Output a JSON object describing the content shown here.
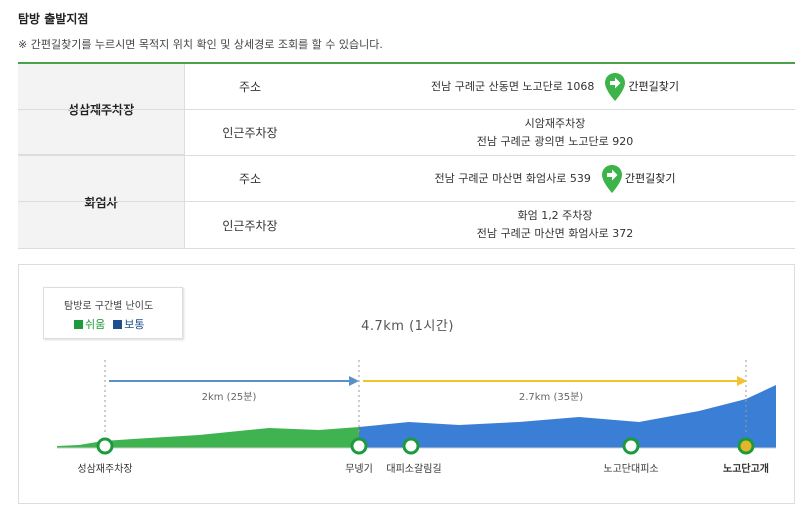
{
  "header": {
    "title": "탐방 출발지점",
    "notice": "※ 간편길찾기를 누르시면 목적지 위치 확인 및 상세경로 조회를 할 수 있습니다."
  },
  "places": [
    {
      "name": "성삼재주차장",
      "address_label": "주소",
      "address": "전남 구례군 산동면 노고단로 1068",
      "route_label": "간편길찾기",
      "parking_label": "인근주차장",
      "parking_name": "시암재주차장",
      "parking_address": "전남 구례군 광의면 노고단로 920"
    },
    {
      "name": "화엄사",
      "address_label": "주소",
      "address": "전남 구례군 마산면 화엄사로 539",
      "route_label": "간편길찾기",
      "parking_label": "인근주차장",
      "parking_name": "화엄 1,2 주차장",
      "parking_address": "전남 구례군 마산면 화엄사로 372"
    }
  ],
  "course": {
    "legend_title": "탐방로 구간별 난이도",
    "legend_easy": "쉬움",
    "legend_normal": "보통",
    "total": "4.7km (1시간)",
    "segments": [
      {
        "label": "2km (25분)",
        "color": "#5b8fc7"
      },
      {
        "label": "2.7km (35분)",
        "color": "#f2c230"
      }
    ],
    "waypoints": [
      "성삼재주차장",
      "무넹기",
      "대피소갈림길",
      "노고단대피소",
      "노고단고개"
    ],
    "colors": {
      "easy": "#3fb34f",
      "normal": "#3a7fd5",
      "accent": "#4aa24c",
      "goal": "#e3b62a"
    }
  }
}
